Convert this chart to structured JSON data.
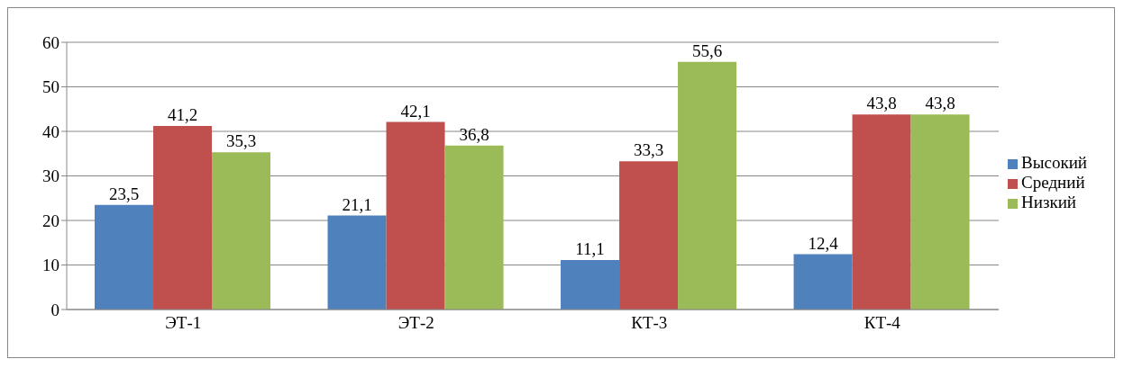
{
  "chart_data": {
    "type": "bar",
    "categories": [
      "ЭТ-1",
      "ЭТ-2",
      "КТ-3",
      "КТ-4"
    ],
    "series": [
      {
        "name": "Высокий",
        "color": "#4f81bd",
        "values": [
          23.5,
          21.1,
          11.1,
          12.4
        ],
        "value_labels": [
          "23,5",
          "21,1",
          "11,1",
          "12,4"
        ]
      },
      {
        "name": "Средний",
        "color": "#c0504d",
        "values": [
          41.2,
          42.1,
          33.3,
          43.8
        ],
        "value_labels": [
          "41,2",
          "42,1",
          "33,3",
          "43,8"
        ]
      },
      {
        "name": "Низкий",
        "color": "#9bbb59",
        "values": [
          35.3,
          36.8,
          55.6,
          43.8
        ],
        "value_labels": [
          "35,3",
          "36,8",
          "55,6",
          "43,8"
        ]
      }
    ],
    "ylim": [
      0,
      60
    ],
    "yticks": [
      0,
      10,
      20,
      30,
      40,
      50,
      60
    ],
    "grid": "y",
    "legend": "right"
  }
}
